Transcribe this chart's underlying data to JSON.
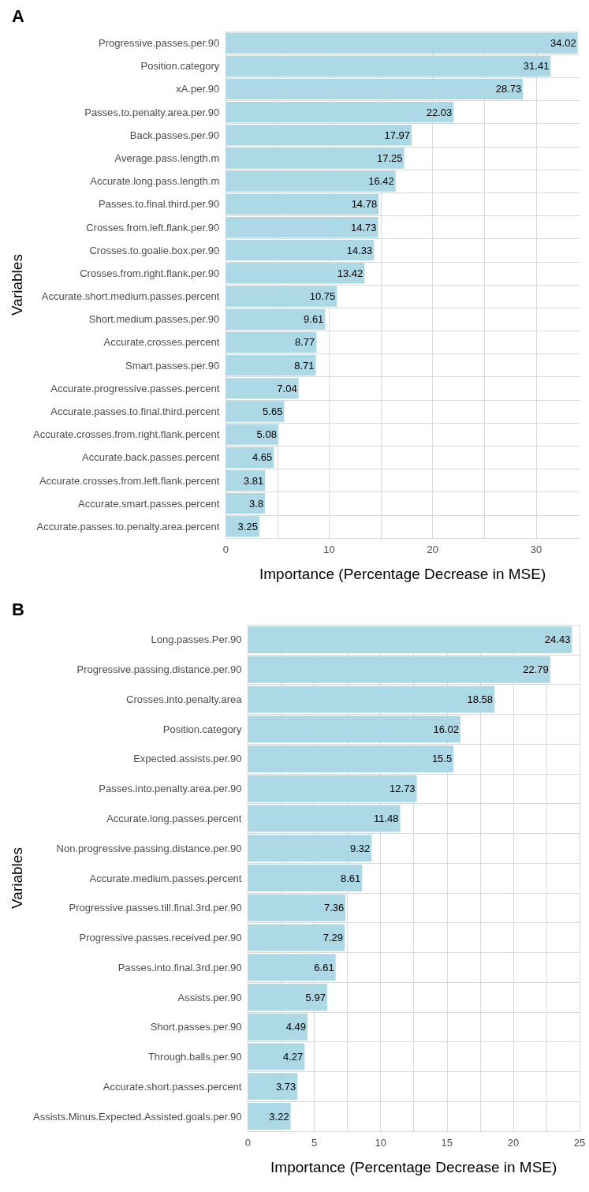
{
  "chart_data": [
    {
      "type": "bar",
      "title": "A",
      "orientation": "horizontal",
      "xlabel": "Importance (Percentage Decrease in MSE)",
      "ylabel": "Variables",
      "color": "#add8e6",
      "data_labels": true,
      "grid": true,
      "categories": [
        "Progressive.passes.per.90",
        "Position.category",
        "xA.per.90",
        "Passes.to.penalty.area.per.90",
        "Back.passes.per.90",
        "Average.pass.length.m",
        "Accurate.long.pass.length.m",
        "Passes.to.final.third.per.90",
        "Crosses.from.left.flank.per.90",
        "Crosses.to.goalie.box.per.90",
        "Crosses.from.right.flank.per.90",
        "Accurate.short.medium.passes.percent",
        "Short.medium.passes.per.90",
        "Accurate.crosses.percent",
        "Smart.passes.per.90",
        "Accurate.progressive.passes.percent",
        "Accurate.passes.to.final.third.percent",
        "Accurate.crosses.from.right.flank.percent",
        "Accurate.back.passes.percent",
        "Accurate.crosses.from.left.flank.percent",
        "Accurate.smart.passes.percent",
        "Accurate.passes.to.penalty.area.percent"
      ],
      "values": [
        34.02,
        31.41,
        28.73,
        22.03,
        17.97,
        17.25,
        16.42,
        14.78,
        14.73,
        14.33,
        13.42,
        10.75,
        9.61,
        8.77,
        8.71,
        7.04,
        5.65,
        5.08,
        4.65,
        3.81,
        3.8,
        3.25
      ],
      "xlim": [
        0,
        34.2
      ],
      "xticks": [
        0,
        {
          "value": 5,
          "label": null
        },
        10,
        {
          "value": 15,
          "label": null
        },
        20,
        {
          "value": 25,
          "label": null
        },
        30
      ]
    },
    {
      "type": "bar",
      "title": "B",
      "orientation": "horizontal",
      "xlabel": "Importance (Percentage Decrease in MSE)",
      "ylabel": "Variables",
      "color": "#add8e6",
      "data_labels": true,
      "grid": true,
      "categories": [
        "Long.passes.Per.90",
        "Progressive.passing.distance.per.90",
        "Crosses.into.penalty.area",
        "Position.category",
        "Expected.assists.per.90",
        "Passes.into.penalty.area.per.90",
        "Accurate.long.passes.percent",
        "Non.progressive.passing.distance.per.90",
        "Accurate.medium.passes.percent",
        "Progressive.passes.till.final.3rd.per.90",
        "Progressive.passes.received.per.90",
        "Passes.into.final.3rd.per.90",
        "Assists.per.90",
        "Short.passes.per.90",
        "Through.balls.per.90",
        "Accurate.short.passes.percent",
        "Assists.Minus.Expected.Assisted.goals.per.90"
      ],
      "values": [
        24.43,
        22.79,
        18.58,
        16.02,
        15.5,
        12.73,
        11.48,
        9.32,
        8.61,
        7.36,
        7.29,
        6.61,
        5.97,
        4.49,
        4.27,
        3.73,
        3.22
      ],
      "xlim": [
        0,
        25
      ],
      "xticks": [
        0,
        {
          "value": 2.5,
          "label": null
        },
        5,
        {
          "value": 7.5,
          "label": null
        },
        10,
        {
          "value": 12.5,
          "label": null
        },
        15,
        {
          "value": 17.5,
          "label": null
        },
        20,
        {
          "value": 22.5,
          "label": null
        },
        25
      ]
    }
  ]
}
